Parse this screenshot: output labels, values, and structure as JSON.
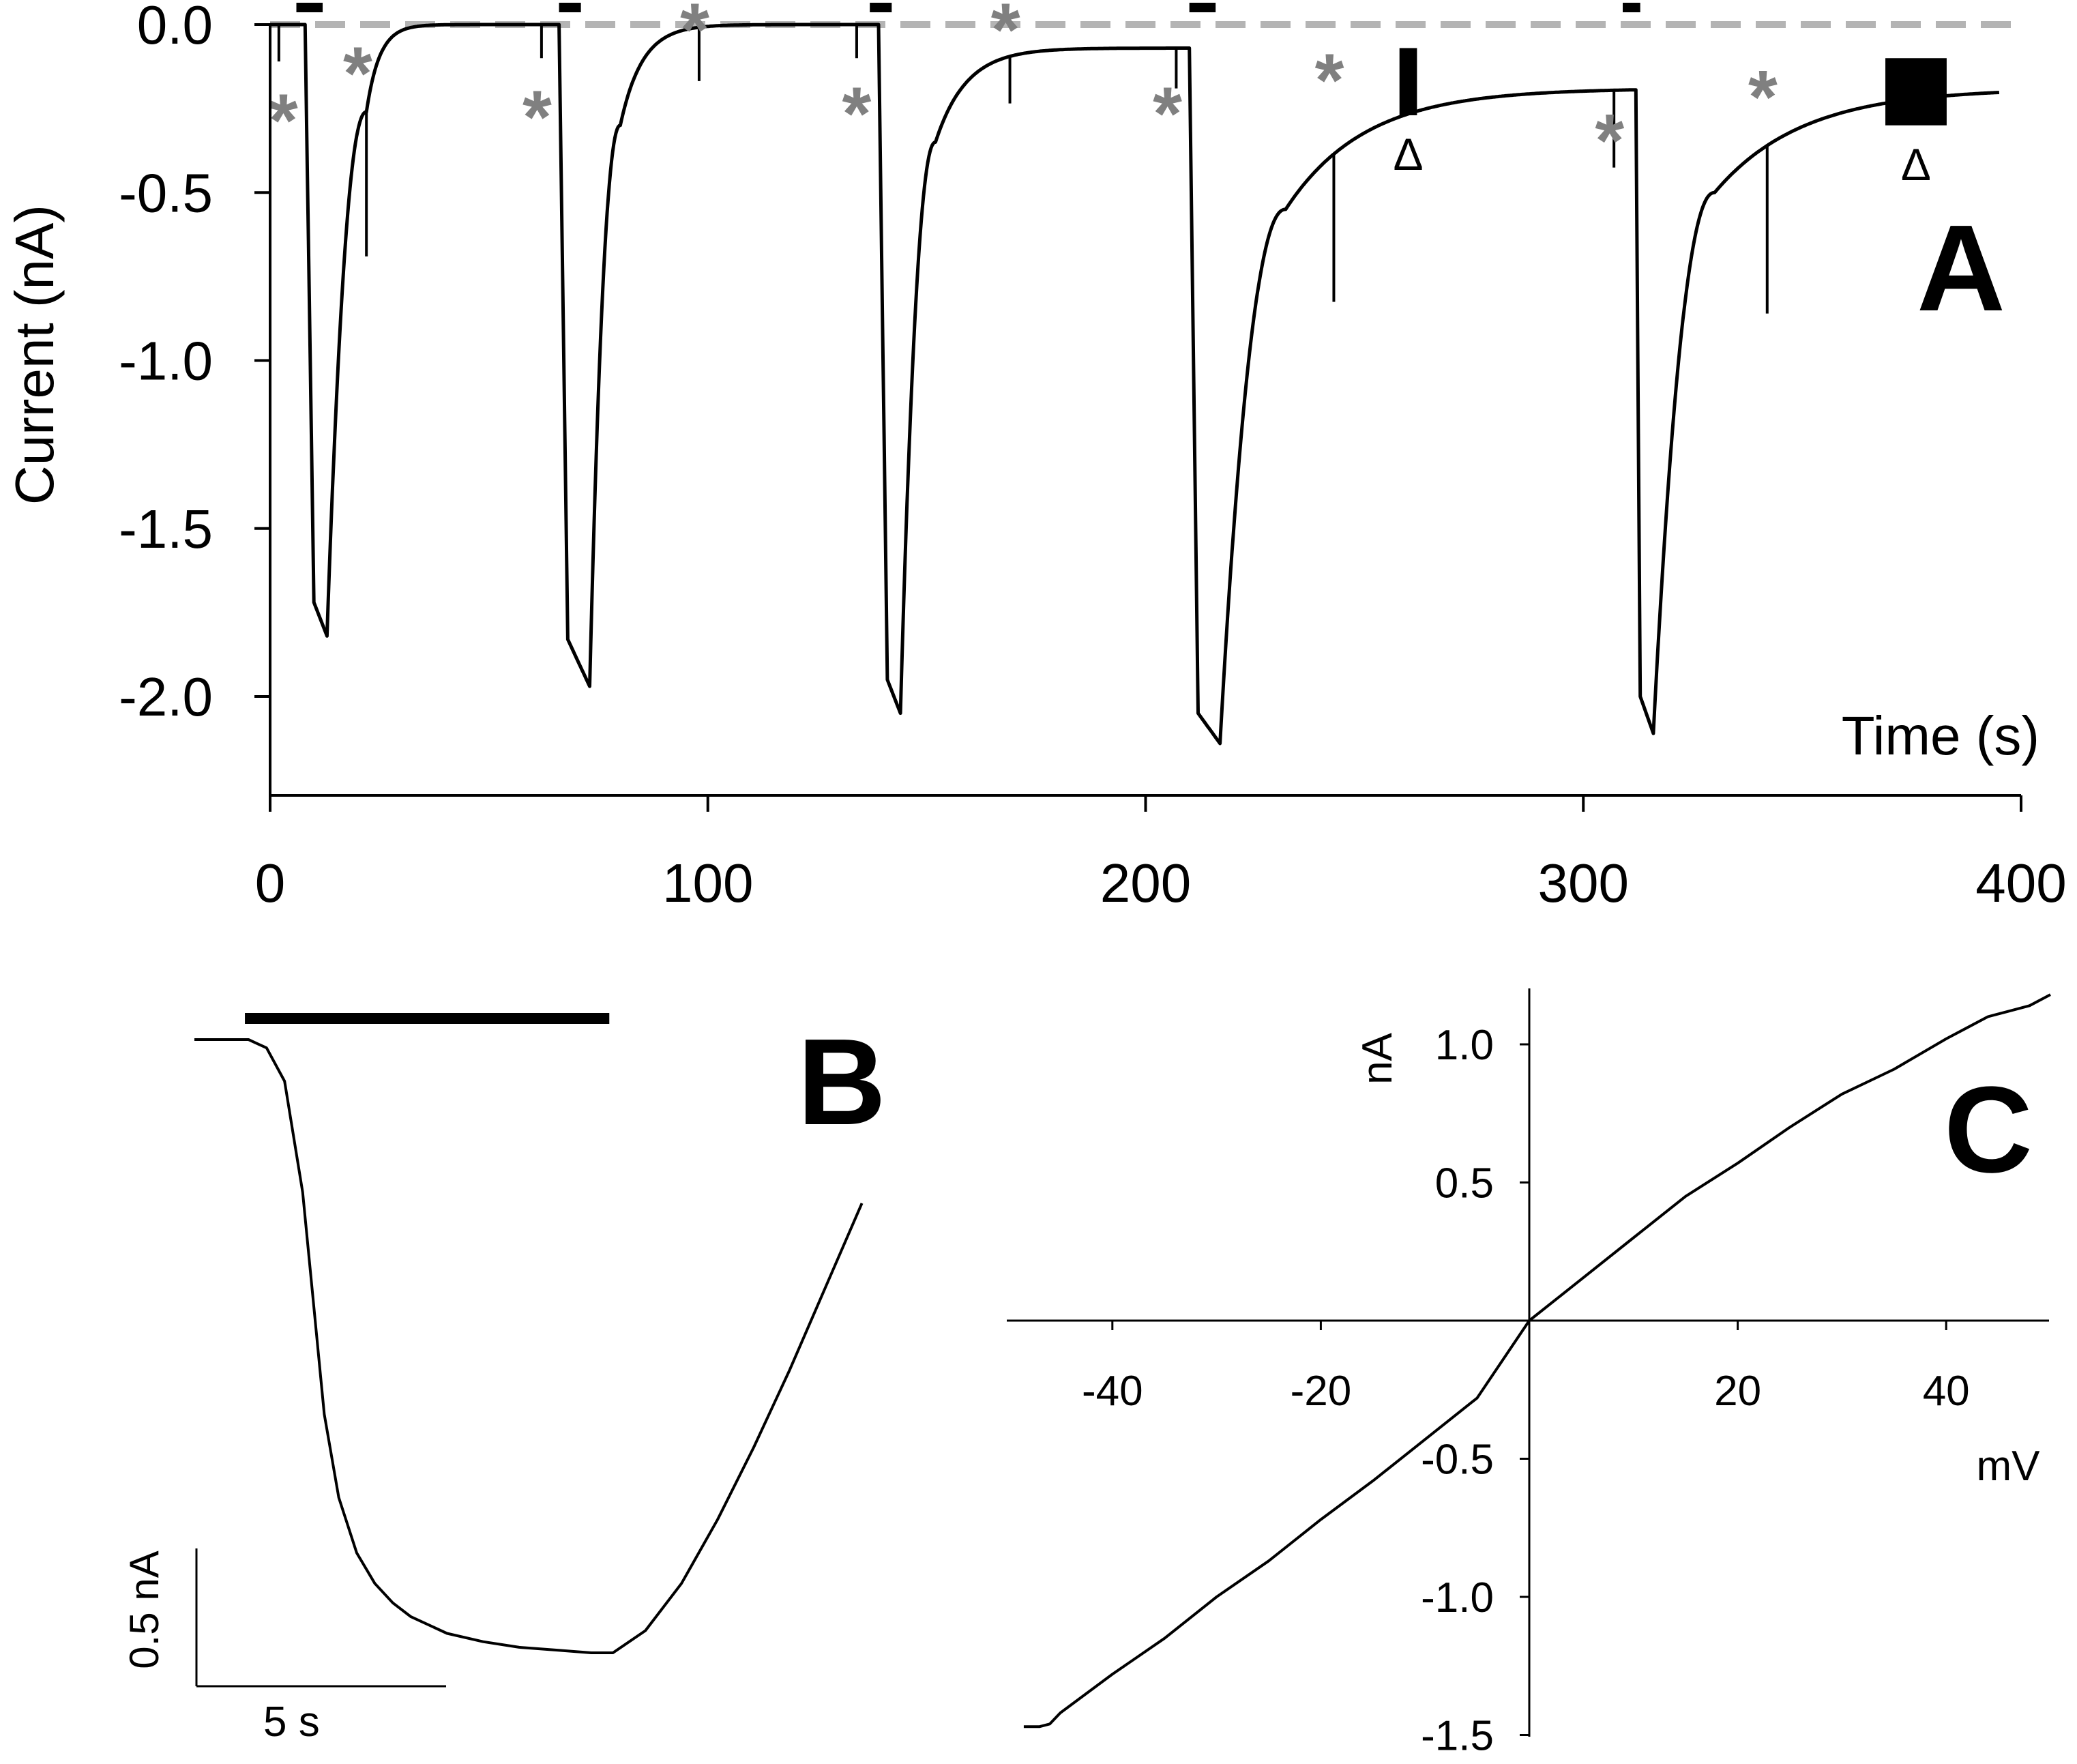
{
  "colors": {
    "trace": "#000000",
    "marker": "#808080",
    "baseline": "#b4b4b4",
    "background": "#ffffff"
  },
  "chart_data": [
    {
      "id": "A",
      "type": "line",
      "panel_label": "A",
      "xlabel": "Time (s)",
      "ylabel": "Current (nA)",
      "xlim": [
        0,
        400
      ],
      "ylim": [
        -2.3,
        0.05
      ],
      "x_ticks": [
        0,
        100,
        200,
        300,
        400
      ],
      "x_tick_labels": [
        "0",
        "100",
        "200",
        "300",
        "400"
      ],
      "y_ticks": [
        0.0,
        -0.5,
        -1.0,
        -1.5,
        -2.0
      ],
      "y_tick_labels": [
        "0.0",
        "-0.5",
        "-1.0",
        "-1.5",
        "-2.0"
      ],
      "baseline": {
        "value": 0.0,
        "style": "dashed"
      },
      "application_bars": [
        {
          "start": 6,
          "end": 12
        },
        {
          "start": 66,
          "end": 71
        },
        {
          "start": 137,
          "end": 142
        },
        {
          "start": 210,
          "end": 216
        },
        {
          "start": 309,
          "end": 313
        }
      ],
      "pulses": [
        {
          "start": 8,
          "onset_end": 10,
          "peak_t": 13,
          "peak": -1.82,
          "pre_peak": -1.72,
          "rec_end": 22,
          "rec_value": -0.26,
          "tau": 3,
          "baseline": 0.0
        },
        {
          "start": 66,
          "onset_end": 68,
          "peak_t": 73,
          "peak": -1.97,
          "pre_peak": -1.83,
          "rec_end": 80,
          "rec_value": -0.3,
          "tau": 5,
          "baseline": 0.0
        },
        {
          "start": 139,
          "onset_end": 141,
          "peak_t": 144,
          "peak": -2.05,
          "pre_peak": -1.95,
          "rec_end": 152,
          "rec_value": -0.35,
          "tau": 7,
          "baseline": 0.0
        },
        {
          "start": 210,
          "onset_end": 212,
          "peak_t": 217,
          "peak": -2.14,
          "pre_peak": -2.05,
          "rec_end": 232,
          "rec_value": -0.55,
          "tau": 18,
          "baseline": -0.07
        },
        {
          "start": 312,
          "onset_end": 313,
          "peak_t": 316,
          "peak": -2.11,
          "pre_peak": -2.0,
          "rec_end": 330,
          "rec_value": -0.5,
          "tau": 20,
          "baseline": -0.19
        }
      ],
      "spikes": [
        {
          "t": 2,
          "depth": -0.11
        },
        {
          "t": 22,
          "depth": -0.43
        },
        {
          "t": 62,
          "depth": -0.1
        },
        {
          "t": 98,
          "depth": -0.16
        },
        {
          "t": 134,
          "depth": -0.1
        },
        {
          "t": 169,
          "depth": -0.14
        },
        {
          "t": 207,
          "depth": -0.12
        },
        {
          "t": 243,
          "depth": -0.44
        },
        {
          "t": 307,
          "depth": -0.23
        },
        {
          "t": 342,
          "depth": -0.5
        }
      ],
      "star_markers": [
        {
          "t": 3,
          "y": -0.22,
          "label": "*"
        },
        {
          "t": 20,
          "y": -0.08,
          "label": "*"
        },
        {
          "t": 61,
          "y": -0.21,
          "label": "*"
        },
        {
          "t": 97,
          "y": 0.05,
          "label": "*"
        },
        {
          "t": 134,
          "y": -0.2,
          "label": "*"
        },
        {
          "t": 168,
          "y": 0.05,
          "label": "*"
        },
        {
          "t": 205,
          "y": -0.2,
          "label": "*"
        },
        {
          "t": 242,
          "y": -0.1,
          "label": "*"
        },
        {
          "t": 306,
          "y": -0.28,
          "label": "*"
        },
        {
          "t": 341,
          "y": -0.15,
          "label": "*"
        }
      ],
      "ramp_blocks": [
        {
          "start": 258,
          "end": 262,
          "top": -0.07,
          "bottom": -0.27,
          "label": "Δ"
        },
        {
          "start": 369,
          "end": 383,
          "top": -0.1,
          "bottom": -0.3,
          "label": "Δ"
        }
      ],
      "end_value": -0.19
    },
    {
      "id": "B",
      "type": "line",
      "panel_label": "B",
      "scale_bar": {
        "y_value": 0.5,
        "y_label": "0.5 nA",
        "x_value": 5,
        "x_label": "5 s"
      },
      "application_bar": {
        "start": 1.4,
        "end": 11.5
      },
      "xlim": [
        0,
        19
      ],
      "ylim": [
        -2.3,
        0.3
      ],
      "trace": {
        "t": [
          0,
          1.5,
          2.0,
          2.5,
          3.0,
          3.3,
          3.6,
          4.0,
          4.5,
          5.0,
          5.5,
          6.0,
          7.0,
          8.0,
          9.0,
          10.0,
          11.0,
          11.6,
          12.5,
          13.5,
          14.5,
          15.5,
          16.5,
          17.5,
          18.5
        ],
        "y": [
          0,
          0,
          -0.03,
          -0.15,
          -0.55,
          -0.95,
          -1.35,
          -1.65,
          -1.85,
          -1.96,
          -2.03,
          -2.08,
          -2.14,
          -2.17,
          -2.19,
          -2.2,
          -2.21,
          -2.21,
          -2.13,
          -1.96,
          -1.73,
          -1.47,
          -1.19,
          -0.89,
          -0.59
        ]
      }
    },
    {
      "id": "C",
      "type": "line",
      "panel_label": "C",
      "xlabel": "mV",
      "ylabel": "nA",
      "xlim": [
        -50,
        50
      ],
      "ylim": [
        -1.5,
        1.2
      ],
      "x_ticks": [
        -40,
        -20,
        20,
        40
      ],
      "x_tick_labels": [
        "-40",
        "-20",
        "20",
        "40"
      ],
      "y_ticks": [
        1.0,
        0.5,
        -0.5,
        -1.0,
        -1.5
      ],
      "y_tick_labels": [
        "1.0",
        "0.5",
        "-0.5",
        "-1.0",
        "-1.5"
      ],
      "trace": {
        "x": [
          -48.5,
          -47,
          -46,
          -45,
          -40,
          -35,
          -30,
          -25,
          -20,
          -15,
          -10,
          -5,
          0,
          5,
          10,
          15,
          20,
          25,
          30,
          35,
          40,
          42,
          44,
          46,
          48,
          50
        ],
        "y": [
          -1.47,
          -1.47,
          -1.46,
          -1.42,
          -1.28,
          -1.15,
          -1.0,
          -0.87,
          -0.72,
          -0.58,
          -0.43,
          -0.28,
          0.0,
          0.15,
          0.3,
          0.45,
          0.57,
          0.7,
          0.82,
          0.91,
          1.02,
          1.06,
          1.1,
          1.12,
          1.14,
          1.18
        ]
      }
    }
  ]
}
